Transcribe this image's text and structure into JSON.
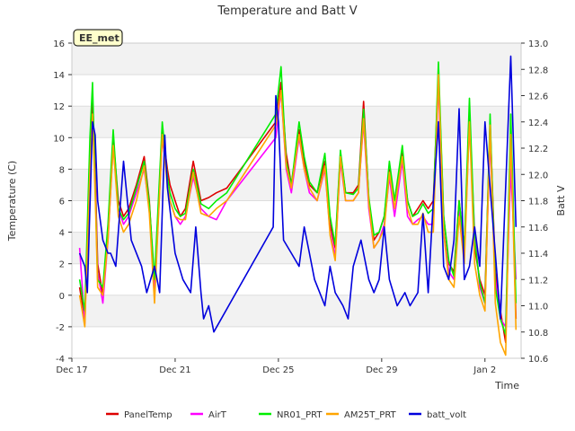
{
  "chart_data": {
    "type": "line",
    "title": "Temperature and Batt V",
    "xlabel": "Time",
    "ylabel_left": "Temperature (C)",
    "ylabel_right": "Batt V",
    "station_label": "EE_met",
    "x_unit": "days since Dec 17",
    "xlim": [
      0,
      17.4
    ],
    "ylim_left": [
      -4,
      16
    ],
    "ylim_right": [
      10.6,
      13.0
    ],
    "x_ticks": [
      {
        "value": 0,
        "label": "Dec 17"
      },
      {
        "value": 4,
        "label": "Dec 21"
      },
      {
        "value": 8,
        "label": "Dec 25"
      },
      {
        "value": 12,
        "label": "Dec 29"
      },
      {
        "value": 16,
        "label": "Jan 2"
      }
    ],
    "y_ticks_left": [
      -4,
      -2,
      0,
      2,
      4,
      6,
      8,
      10,
      12,
      14,
      16
    ],
    "y_ticks_right": [
      "10.6",
      "10.8",
      "11.0",
      "11.2",
      "11.4",
      "11.6",
      "11.8",
      "12.0",
      "12.2",
      "12.4",
      "12.6",
      "12.8",
      "13.0"
    ],
    "grid": true,
    "legend_position": "bottom",
    "temperature_x": [
      0.3,
      0.5,
      0.7,
      0.8,
      0.9,
      1.0,
      1.2,
      1.4,
      1.6,
      1.8,
      2.0,
      2.2,
      2.5,
      2.8,
      3.0,
      3.2,
      3.5,
      3.7,
      3.8,
      4.0,
      4.2,
      4.4,
      4.7,
      5.0,
      5.3,
      5.6,
      6.0,
      7.9,
      8.1,
      8.3,
      8.5,
      8.8,
      9.0,
      9.2,
      9.5,
      9.8,
      10.0,
      10.2,
      10.4,
      10.6,
      10.9,
      11.1,
      11.3,
      11.5,
      11.7,
      11.9,
      12.1,
      12.3,
      12.5,
      12.8,
      13.0,
      13.2,
      13.4,
      13.6,
      13.8,
      14.0,
      14.2,
      14.4,
      14.6,
      14.8,
      15.0,
      15.2,
      15.4,
      15.6,
      15.8,
      16.0,
      16.2,
      16.4,
      16.6,
      16.8,
      17.0,
      17.2
    ],
    "series": [
      {
        "name": "PanelTemp",
        "color": "#dd0000",
        "values": [
          0.5,
          -1.5,
          9.0,
          12.5,
          8.0,
          2.0,
          0.0,
          4.0,
          10.0,
          6.0,
          5.0,
          5.5,
          7.0,
          8.8,
          6.0,
          0.5,
          10.5,
          8.0,
          7.0,
          6.0,
          5.0,
          5.5,
          8.5,
          6.0,
          6.2,
          6.5,
          6.8,
          11.0,
          13.5,
          9.0,
          7.0,
          10.5,
          8.5,
          7.0,
          6.5,
          8.5,
          4.5,
          3.0,
          9.0,
          6.5,
          6.5,
          7.0,
          12.3,
          6.0,
          3.5,
          4.0,
          5.0,
          8.0,
          6.0,
          9.0,
          6.0,
          5.0,
          5.5,
          6.0,
          5.5,
          6.0,
          14.0,
          5.0,
          2.0,
          1.5,
          6.0,
          3.0,
          11.5,
          3.0,
          1.0,
          0.0,
          11.0,
          1.5,
          -1.0,
          -3.0,
          10.5,
          -1.5
        ]
      },
      {
        "name": "AirT",
        "color": "#ff00ff",
        "values": [
          3.0,
          -1.8,
          8.5,
          11.0,
          7.5,
          1.5,
          -0.5,
          3.5,
          9.5,
          5.5,
          4.5,
          5.0,
          6.5,
          8.0,
          5.5,
          0.0,
          10.0,
          7.5,
          6.0,
          5.0,
          4.5,
          5.0,
          7.5,
          5.5,
          5.0,
          4.8,
          6.0,
          10.0,
          13.0,
          8.0,
          6.5,
          10.0,
          8.0,
          6.5,
          6.0,
          8.0,
          4.0,
          2.5,
          8.5,
          6.0,
          6.0,
          6.5,
          11.0,
          5.5,
          3.0,
          3.5,
          4.5,
          7.5,
          5.0,
          8.5,
          5.0,
          4.5,
          4.8,
          5.0,
          4.5,
          4.5,
          13.5,
          4.0,
          1.5,
          1.0,
          5.5,
          2.5,
          11.0,
          4.0,
          0.5,
          -0.5,
          10.0,
          1.0,
          -1.5,
          -2.0,
          8.0,
          1.0
        ]
      },
      {
        "name": "NR01_PRT",
        "color": "#00ee00",
        "values": [
          1.0,
          -1.0,
          10.0,
          13.5,
          7.0,
          1.0,
          0.5,
          4.5,
          10.5,
          5.5,
          4.8,
          5.2,
          6.8,
          8.5,
          5.8,
          1.0,
          11.0,
          7.5,
          6.5,
          5.5,
          5.0,
          5.2,
          8.0,
          5.8,
          5.5,
          6.0,
          6.5,
          11.5,
          14.5,
          8.5,
          7.0,
          11.0,
          8.8,
          7.2,
          6.5,
          9.0,
          5.0,
          3.2,
          9.2,
          6.5,
          6.4,
          6.8,
          11.8,
          6.2,
          3.8,
          4.0,
          5.0,
          8.5,
          6.0,
          9.5,
          6.0,
          5.0,
          5.2,
          5.8,
          5.2,
          5.5,
          14.8,
          5.0,
          2.2,
          1.2,
          6.0,
          3.0,
          12.5,
          3.5,
          0.8,
          -0.5,
          11.5,
          0.5,
          -1.5,
          -2.5,
          11.5,
          -0.5
        ]
      },
      {
        "name": "AM25T_PRT",
        "color": "#ffa500",
        "values": [
          0.0,
          -2.0,
          8.0,
          11.5,
          6.5,
          0.5,
          0.0,
          3.5,
          9.5,
          5.0,
          4.0,
          4.5,
          6.0,
          8.2,
          5.2,
          -0.5,
          10.2,
          7.0,
          6.0,
          5.0,
          4.8,
          4.8,
          7.8,
          5.2,
          5.0,
          5.5,
          6.0,
          10.8,
          13.0,
          8.2,
          6.8,
          10.2,
          8.0,
          6.8,
          6.0,
          8.2,
          3.8,
          2.2,
          8.8,
          6.0,
          6.0,
          6.5,
          11.2,
          5.8,
          3.0,
          3.5,
          4.2,
          7.8,
          5.5,
          8.8,
          5.5,
          4.5,
          4.5,
          5.2,
          4.0,
          4.0,
          14.0,
          4.0,
          1.0,
          0.5,
          5.0,
          2.0,
          11.0,
          2.0,
          0.0,
          -1.0,
          10.8,
          -0.5,
          -3.0,
          -3.8,
          10.2,
          -2.2
        ]
      },
      {
        "name": "batt_volt",
        "color": "#0000dd",
        "axis": "right",
        "x": [
          0.3,
          0.5,
          0.6,
          0.8,
          0.9,
          1.0,
          1.2,
          1.4,
          1.5,
          1.7,
          2.0,
          2.3,
          2.7,
          2.9,
          3.2,
          3.4,
          3.6,
          3.7,
          4.0,
          4.3,
          4.6,
          4.8,
          5.0,
          5.1,
          5.3,
          5.5,
          7.8,
          7.9,
          8.0,
          8.2,
          8.5,
          8.8,
          9.0,
          9.2,
          9.4,
          9.6,
          9.8,
          10.0,
          10.2,
          10.5,
          10.7,
          10.9,
          11.2,
          11.5,
          11.7,
          11.9,
          12.1,
          12.3,
          12.6,
          12.9,
          13.1,
          13.4,
          13.6,
          13.8,
          14.0,
          14.2,
          14.4,
          14.6,
          14.8,
          15.0,
          15.2,
          15.4,
          15.6,
          15.8,
          16.0,
          16.2,
          16.4,
          16.6,
          16.8,
          17.0,
          17.2
        ],
        "values": [
          11.4,
          11.3,
          11.1,
          12.4,
          12.3,
          11.8,
          11.5,
          11.4,
          11.4,
          11.3,
          12.1,
          11.5,
          11.3,
          11.1,
          11.3,
          11.1,
          12.3,
          11.9,
          11.4,
          11.2,
          11.1,
          11.6,
          11.1,
          10.9,
          11.0,
          10.8,
          11.6,
          12.6,
          12.4,
          11.5,
          11.4,
          11.3,
          11.6,
          11.4,
          11.2,
          11.1,
          11.0,
          11.3,
          11.1,
          11.0,
          10.9,
          11.3,
          11.5,
          11.2,
          11.1,
          11.2,
          11.6,
          11.2,
          11.0,
          11.1,
          11.0,
          11.1,
          11.7,
          11.1,
          11.8,
          12.4,
          11.3,
          11.2,
          11.5,
          12.5,
          11.2,
          11.3,
          11.6,
          11.3,
          12.4,
          11.9,
          11.4,
          10.9,
          11.9,
          12.9,
          11.6
        ]
      }
    ]
  }
}
